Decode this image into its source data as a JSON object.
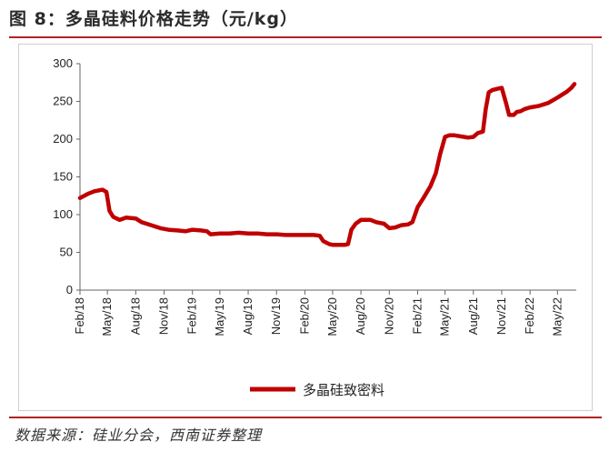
{
  "title": "图 8：多晶硅料价格走势（元/kg）",
  "source": "数据来源：硅业分会，西南证券整理",
  "chart_data": {
    "type": "line",
    "ylim": [
      0,
      300
    ],
    "yticks": [
      "0",
      "50",
      "100",
      "150",
      "200",
      "250",
      "300"
    ],
    "xlim": [
      "2018-02-01",
      "2022-07-01"
    ],
    "xticks": [
      {
        "date": "2018-02-01",
        "label": "Feb/18"
      },
      {
        "date": "2018-05-01",
        "label": "May/18"
      },
      {
        "date": "2018-08-01",
        "label": "Aug/18"
      },
      {
        "date": "2018-11-01",
        "label": "Nov/18"
      },
      {
        "date": "2019-02-01",
        "label": "Feb/19"
      },
      {
        "date": "2019-05-01",
        "label": "May/19"
      },
      {
        "date": "2019-08-01",
        "label": "Aug/19"
      },
      {
        "date": "2019-11-01",
        "label": "Nov/19"
      },
      {
        "date": "2020-02-01",
        "label": "Feb/20"
      },
      {
        "date": "2020-05-01",
        "label": "May/20"
      },
      {
        "date": "2020-08-01",
        "label": "Aug/20"
      },
      {
        "date": "2020-11-01",
        "label": "Nov/20"
      },
      {
        "date": "2021-02-01",
        "label": "Feb/21"
      },
      {
        "date": "2021-05-01",
        "label": "May/21"
      },
      {
        "date": "2021-08-01",
        "label": "Aug/21"
      },
      {
        "date": "2021-11-01",
        "label": "Nov/21"
      },
      {
        "date": "2022-02-01",
        "label": "Feb/22"
      },
      {
        "date": "2022-05-01",
        "label": "May/22"
      }
    ],
    "legend_position": "bottom",
    "series": [
      {
        "name": "多晶硅致密料",
        "color": "#c00000",
        "points": [
          [
            "2018-02-01",
            122
          ],
          [
            "2018-02-15",
            125
          ],
          [
            "2018-03-01",
            128
          ],
          [
            "2018-03-20",
            131
          ],
          [
            "2018-04-15",
            133
          ],
          [
            "2018-04-28",
            130
          ],
          [
            "2018-05-08",
            105
          ],
          [
            "2018-05-20",
            97
          ],
          [
            "2018-06-10",
            93
          ],
          [
            "2018-07-01",
            96
          ],
          [
            "2018-08-01",
            95
          ],
          [
            "2018-08-20",
            90
          ],
          [
            "2018-09-20",
            86
          ],
          [
            "2018-10-20",
            82
          ],
          [
            "2018-11-15",
            80
          ],
          [
            "2018-12-15",
            79
          ],
          [
            "2019-01-10",
            78
          ],
          [
            "2019-02-01",
            80
          ],
          [
            "2019-03-01",
            79
          ],
          [
            "2019-03-20",
            78
          ],
          [
            "2019-04-01",
            74
          ],
          [
            "2019-05-01",
            75
          ],
          [
            "2019-06-01",
            75
          ],
          [
            "2019-07-01",
            76
          ],
          [
            "2019-08-01",
            75
          ],
          [
            "2019-09-01",
            75
          ],
          [
            "2019-10-01",
            74
          ],
          [
            "2019-11-01",
            74
          ],
          [
            "2019-12-01",
            73
          ],
          [
            "2020-01-01",
            73
          ],
          [
            "2020-02-01",
            73
          ],
          [
            "2020-03-01",
            73
          ],
          [
            "2020-03-20",
            72
          ],
          [
            "2020-04-01",
            65
          ],
          [
            "2020-04-20",
            61
          ],
          [
            "2020-05-01",
            60
          ],
          [
            "2020-05-20",
            60
          ],
          [
            "2020-06-10",
            60
          ],
          [
            "2020-06-20",
            61
          ],
          [
            "2020-07-01",
            80
          ],
          [
            "2020-07-15",
            88
          ],
          [
            "2020-08-01",
            93
          ],
          [
            "2020-08-20",
            93
          ],
          [
            "2020-09-01",
            93
          ],
          [
            "2020-09-20",
            90
          ],
          [
            "2020-10-15",
            88
          ],
          [
            "2020-11-01",
            82
          ],
          [
            "2020-11-20",
            83
          ],
          [
            "2020-12-10",
            86
          ],
          [
            "2021-01-01",
            87
          ],
          [
            "2021-01-15",
            90
          ],
          [
            "2021-02-01",
            110
          ],
          [
            "2021-02-20",
            122
          ],
          [
            "2021-03-15",
            138
          ],
          [
            "2021-04-01",
            155
          ],
          [
            "2021-04-15",
            180
          ],
          [
            "2021-05-01",
            203
          ],
          [
            "2021-05-15",
            205
          ],
          [
            "2021-06-01",
            205
          ],
          [
            "2021-07-01",
            203
          ],
          [
            "2021-07-15",
            202
          ],
          [
            "2021-08-01",
            203
          ],
          [
            "2021-08-15",
            208
          ],
          [
            "2021-09-01",
            210
          ],
          [
            "2021-09-10",
            240
          ],
          [
            "2021-09-20",
            262
          ],
          [
            "2021-10-01",
            265
          ],
          [
            "2021-10-20",
            267
          ],
          [
            "2021-11-01",
            268
          ],
          [
            "2021-11-15",
            248
          ],
          [
            "2021-11-25",
            232
          ],
          [
            "2021-12-10",
            232
          ],
          [
            "2021-12-20",
            236
          ],
          [
            "2022-01-01",
            237
          ],
          [
            "2022-01-15",
            240
          ],
          [
            "2022-02-01",
            242
          ],
          [
            "2022-03-01",
            244
          ],
          [
            "2022-04-01",
            248
          ],
          [
            "2022-05-01",
            255
          ],
          [
            "2022-06-01",
            263
          ],
          [
            "2022-06-15",
            268
          ],
          [
            "2022-06-25",
            273
          ]
        ]
      }
    ]
  }
}
